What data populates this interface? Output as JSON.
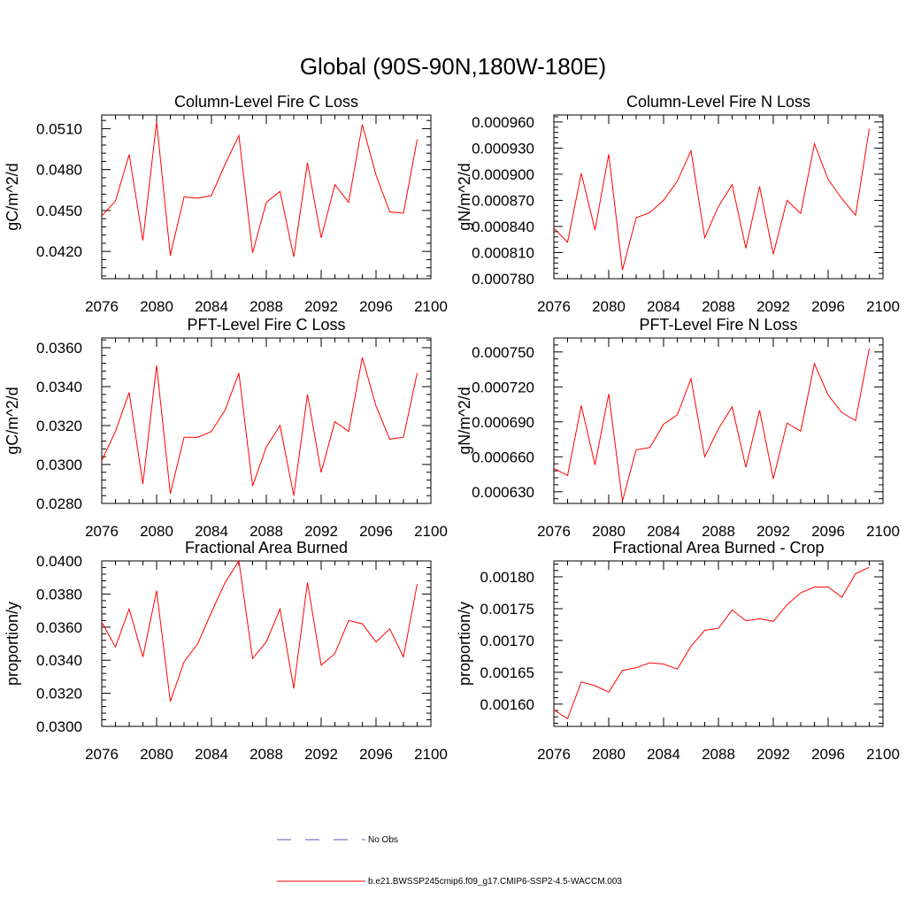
{
  "figure": {
    "title": "Global (90S-90N,180W-180E)"
  },
  "legend": {
    "entries": [
      {
        "label": "No Obs",
        "style": "dashed",
        "color": "#5a5ab4"
      },
      {
        "label": "b.e21.BWSSP245cmip6.f09_g17.CMIP6-SSP2-4.5-WACCM.003",
        "style": "solid",
        "color": "#ff0000"
      }
    ]
  },
  "colors": {
    "series": "#ff0000",
    "axis": "#000000"
  },
  "chart_data": [
    {
      "type": "line",
      "title": "Column-Level Fire C Loss",
      "ylabel": "gC/m^2/d",
      "xlabel": "",
      "xlim": [
        2076,
        2100
      ],
      "ylim": [
        0.04,
        0.052
      ],
      "xticks": [
        "2076",
        "2080",
        "2084",
        "2088",
        "2092",
        "2096",
        "2100"
      ],
      "yticks": [
        "0.0420",
        "0.0450",
        "0.0480",
        "0.0510"
      ],
      "x": [
        2076,
        2077,
        2078,
        2079,
        2080,
        2081,
        2082,
        2083,
        2084,
        2085,
        2086,
        2087,
        2088,
        2089,
        2090,
        2091,
        2092,
        2093,
        2094,
        2095,
        2096,
        2097,
        2098,
        2099
      ],
      "series": [
        {
          "name": "b.e21.BWSSP245cmip6.f09_g17.CMIP6-SSP2-4.5-WACCM.003",
          "values": [
            0.0446,
            0.0457,
            0.0491,
            0.0428,
            0.0515,
            0.0417,
            0.046,
            0.0459,
            0.0461,
            0.0484,
            0.0505,
            0.0419,
            0.0456,
            0.0464,
            0.0416,
            0.0485,
            0.043,
            0.0469,
            0.0456,
            0.0513,
            0.0476,
            0.0449,
            0.0448,
            0.0502
          ]
        }
      ]
    },
    {
      "type": "line",
      "title": "Column-Level Fire N Loss",
      "ylabel": "gN/m^2/d",
      "xlabel": "",
      "xlim": [
        2076,
        2100
      ],
      "ylim": [
        0.00078,
        0.000968
      ],
      "xticks": [
        "2076",
        "2080",
        "2084",
        "2088",
        "2092",
        "2096",
        "2100"
      ],
      "yticks": [
        "0.000780",
        "0.000810",
        "0.000840",
        "0.000870",
        "0.000900",
        "0.000930",
        "0.000960"
      ],
      "x": [
        2076,
        2077,
        2078,
        2079,
        2080,
        2081,
        2082,
        2083,
        2084,
        2085,
        2086,
        2087,
        2088,
        2089,
        2090,
        2091,
        2092,
        2093,
        2094,
        2095,
        2096,
        2097,
        2098,
        2099
      ],
      "series": [
        {
          "name": "b.e21.BWSSP245cmip6.f09_g17.CMIP6-SSP2-4.5-WACCM.003",
          "values": [
            0.000838,
            0.000822,
            0.000901,
            0.000836,
            0.000923,
            0.00079,
            0.00085,
            0.000856,
            0.00087,
            0.000892,
            0.000927,
            0.000827,
            0.000863,
            0.000888,
            0.000815,
            0.000886,
            0.000808,
            0.00087,
            0.000855,
            0.000935,
            0.000894,
            0.000872,
            0.000853,
            0.000952
          ]
        }
      ]
    },
    {
      "type": "line",
      "title": "PFT-Level Fire C Loss",
      "ylabel": "gC/m^2/d",
      "xlabel": "",
      "xlim": [
        2076,
        2100
      ],
      "ylim": [
        0.028,
        0.0365
      ],
      "xticks": [
        "2076",
        "2080",
        "2084",
        "2088",
        "2092",
        "2096",
        "2100"
      ],
      "yticks": [
        "0.0280",
        "0.0300",
        "0.0320",
        "0.0340",
        "0.0360"
      ],
      "x": [
        2076,
        2077,
        2078,
        2079,
        2080,
        2081,
        2082,
        2083,
        2084,
        2085,
        2086,
        2087,
        2088,
        2089,
        2090,
        2091,
        2092,
        2093,
        2094,
        2095,
        2096,
        2097,
        2098,
        2099
      ],
      "series": [
        {
          "name": "b.e21.BWSSP245cmip6.f09_g17.CMIP6-SSP2-4.5-WACCM.003",
          "values": [
            0.0302,
            0.0317,
            0.0337,
            0.029,
            0.0351,
            0.0285,
            0.0314,
            0.0314,
            0.0317,
            0.0328,
            0.0347,
            0.0289,
            0.0309,
            0.032,
            0.0284,
            0.0336,
            0.0296,
            0.0322,
            0.0317,
            0.0355,
            0.033,
            0.0313,
            0.0314,
            0.0347
          ]
        }
      ]
    },
    {
      "type": "line",
      "title": "PFT-Level Fire N Loss",
      "ylabel": "gN/m^2/d",
      "xlabel": "",
      "xlim": [
        2076,
        2100
      ],
      "ylim": [
        0.00062,
        0.000762
      ],
      "xticks": [
        "2076",
        "2080",
        "2084",
        "2088",
        "2092",
        "2096",
        "2100"
      ],
      "yticks": [
        "0.000630",
        "0.000660",
        "0.000690",
        "0.000720",
        "0.000750"
      ],
      "x": [
        2076,
        2077,
        2078,
        2079,
        2080,
        2081,
        2082,
        2083,
        2084,
        2085,
        2086,
        2087,
        2088,
        2089,
        2090,
        2091,
        2092,
        2093,
        2094,
        2095,
        2096,
        2097,
        2098,
        2099
      ],
      "series": [
        {
          "name": "b.e21.BWSSP245cmip6.f09_g17.CMIP6-SSP2-4.5-WACCM.003",
          "values": [
            0.00065,
            0.000644,
            0.000704,
            0.000653,
            0.000714,
            0.000622,
            0.000666,
            0.000668,
            0.000688,
            0.000696,
            0.000727,
            0.00066,
            0.000684,
            0.000703,
            0.000651,
            0.0007,
            0.000641,
            0.000689,
            0.000682,
            0.00074,
            0.000713,
            0.000698,
            0.000691,
            0.000753
          ]
        }
      ]
    },
    {
      "type": "line",
      "title": "Fractional Area Burned",
      "ylabel": "proportion/y",
      "xlabel": "",
      "xlim": [
        2076,
        2100
      ],
      "ylim": [
        0.03,
        0.04
      ],
      "xticks": [
        "2076",
        "2080",
        "2084",
        "2088",
        "2092",
        "2096",
        "2100"
      ],
      "yticks": [
        "0.0300",
        "0.0320",
        "0.0340",
        "0.0360",
        "0.0380",
        "0.0400"
      ],
      "x": [
        2076,
        2077,
        2078,
        2079,
        2080,
        2081,
        2082,
        2083,
        2084,
        2085,
        2086,
        2087,
        2088,
        2089,
        2090,
        2091,
        2092,
        2093,
        2094,
        2095,
        2096,
        2097,
        2098,
        2099
      ],
      "series": [
        {
          "name": "b.e21.BWSSP245cmip6.f09_g17.CMIP6-SSP2-4.5-WACCM.003",
          "values": [
            0.0363,
            0.0348,
            0.0371,
            0.0342,
            0.0382,
            0.0315,
            0.0339,
            0.035,
            0.0369,
            0.0387,
            0.04,
            0.0341,
            0.0351,
            0.0371,
            0.0323,
            0.0387,
            0.0337,
            0.0344,
            0.0364,
            0.0362,
            0.0351,
            0.0359,
            0.0342,
            0.0386
          ]
        }
      ]
    },
    {
      "type": "line",
      "title": "Fractional Area Burned - Crop",
      "ylabel": "proportion/y",
      "xlabel": "",
      "xlim": [
        2076,
        2100
      ],
      "ylim": [
        0.001565,
        0.001825
      ],
      "xticks": [
        "2076",
        "2080",
        "2084",
        "2088",
        "2092",
        "2096",
        "2100"
      ],
      "yticks": [
        "0.00160",
        "0.00165",
        "0.00170",
        "0.00175",
        "0.00180"
      ],
      "x": [
        2076,
        2077,
        2078,
        2079,
        2080,
        2081,
        2082,
        2083,
        2084,
        2085,
        2086,
        2087,
        2088,
        2089,
        2090,
        2091,
        2092,
        2093,
        2094,
        2095,
        2096,
        2097,
        2098,
        2099
      ],
      "series": [
        {
          "name": "b.e21.BWSSP245cmip6.f09_g17.CMIP6-SSP2-4.5-WACCM.003",
          "values": [
            0.001591,
            0.001577,
            0.001635,
            0.001629,
            0.001619,
            0.001653,
            0.001657,
            0.001665,
            0.001663,
            0.001655,
            0.001691,
            0.001716,
            0.001719,
            0.001748,
            0.001731,
            0.001734,
            0.00173,
            0.001756,
            0.001775,
            0.001784,
            0.001784,
            0.001768,
            0.001805,
            0.001815
          ]
        }
      ]
    }
  ]
}
